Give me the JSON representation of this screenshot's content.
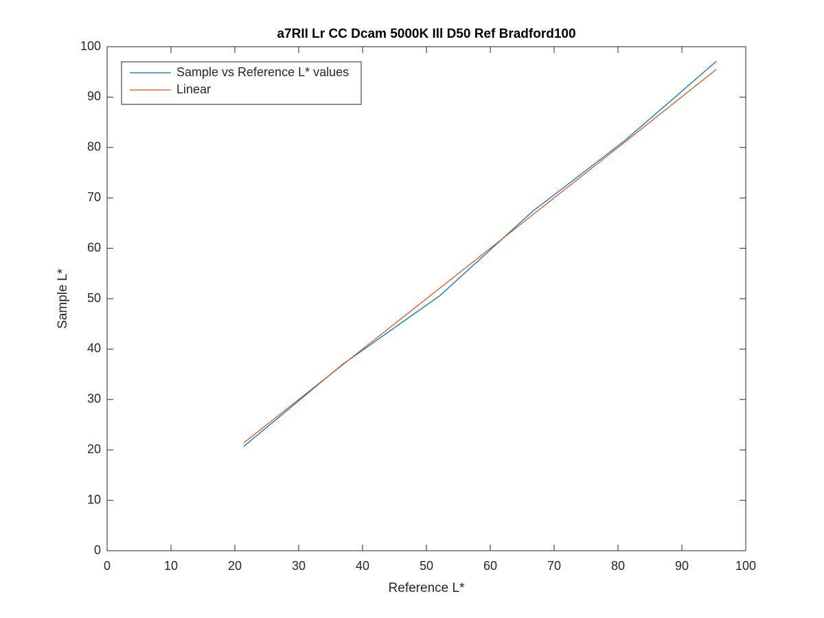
{
  "chart_data": {
    "type": "line",
    "title": "a7RII Lr CC Dcam 5000K Ill D50 Ref Bradford100",
    "x_label": "Reference L*",
    "y_label": "Sample L*",
    "x": [
      21.4,
      36.9,
      52.1,
      66.6,
      81.1,
      95.4
    ],
    "series": [
      {
        "name": "Sample vs Reference L* values",
        "color": "#0072bd",
        "values": [
          20.7,
          37.0,
          50.6,
          67.3,
          81.4,
          97.1
        ]
      },
      {
        "name": "Linear",
        "color": "#d95319",
        "values": [
          21.4,
          36.9,
          52.1,
          66.6,
          81.1,
          95.5
        ]
      }
    ],
    "xlim": [
      0,
      100
    ],
    "xticks": [
      0,
      10,
      20,
      30,
      40,
      50,
      60,
      70,
      80,
      90,
      100
    ],
    "ylim": [
      0,
      100
    ],
    "yticks": [
      0,
      10,
      20,
      30,
      40,
      50,
      60,
      70,
      80,
      90,
      100
    ],
    "grid": false,
    "legend_position": "northwest"
  }
}
